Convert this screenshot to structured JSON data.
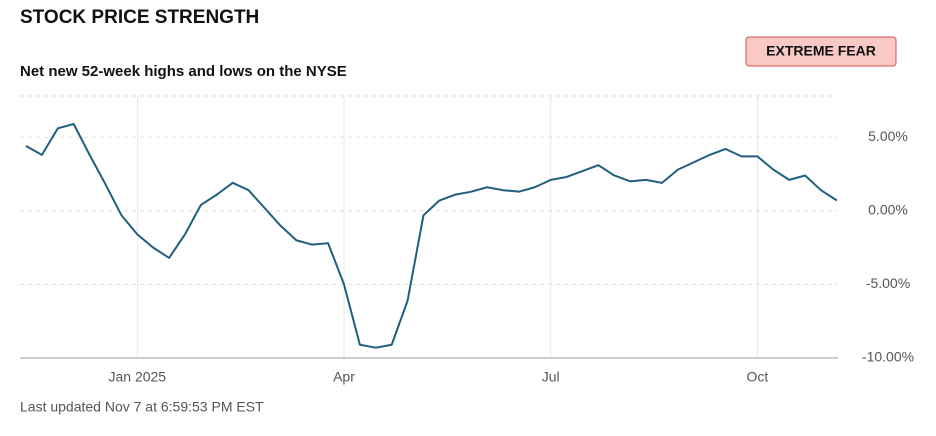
{
  "chart_data": {
    "type": "line",
    "title": "STOCK PRICE STRENGTH",
    "subtitle": "Net new 52-week highs and lows on the NYSE",
    "badge": "EXTREME FEAR",
    "footnote": "Last updated Nov 7 at 6:59:53 PM EST",
    "categories": [
      null,
      null,
      null,
      null,
      null,
      null,
      null,
      "Jan 2025",
      null,
      null,
      null,
      null,
      null,
      null,
      null,
      null,
      null,
      null,
      null,
      null,
      "Apr",
      null,
      null,
      null,
      null,
      null,
      null,
      null,
      null,
      null,
      null,
      null,
      null,
      "Jul",
      null,
      null,
      null,
      null,
      null,
      null,
      null,
      null,
      null,
      null,
      null,
      null,
      "Oct",
      null,
      null,
      null,
      null,
      null
    ],
    "series": [
      {
        "name": "Net new highs/lows",
        "color": "#1f5f80",
        "values": [
          4.4,
          3.8,
          5.6,
          5.9,
          3.8,
          1.8,
          -0.3,
          -1.6,
          -2.5,
          -3.2,
          -1.6,
          0.4,
          1.1,
          1.9,
          1.4,
          0.2,
          -1.0,
          -2.0,
          -2.3,
          -2.2,
          -5.0,
          -9.1,
          -9.3,
          -9.1,
          -6.1,
          -0.3,
          0.7,
          1.1,
          1.3,
          1.6,
          1.4,
          1.3,
          1.6,
          2.1,
          2.3,
          2.7,
          3.1,
          2.4,
          2.0,
          2.1,
          1.9,
          2.8,
          3.3,
          3.8,
          4.2,
          3.7,
          3.7,
          2.8,
          2.1,
          2.4,
          1.4,
          0.7
        ]
      }
    ],
    "ylim": [
      -10,
      7.8
    ],
    "yticks": [
      {
        "value": 5,
        "label": "5.00%"
      },
      {
        "value": 0,
        "label": "0.00%"
      },
      {
        "value": -5,
        "label": "-5.00%"
      },
      {
        "value": -10,
        "label": "-10.00%"
      }
    ],
    "grid": true
  }
}
